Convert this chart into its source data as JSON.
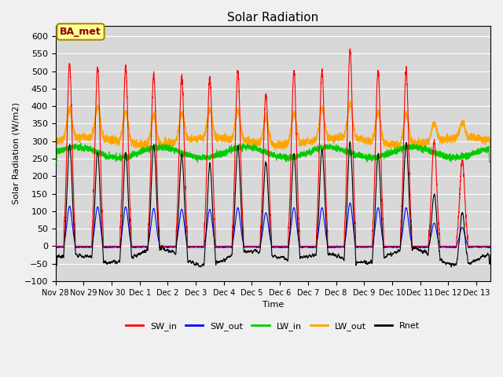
{
  "title": "Solar Radiation",
  "ylabel": "Solar Radiation (W/m2)",
  "xlabel": "Time",
  "ylim": [
    -100,
    630
  ],
  "yticks": [
    -100,
    -50,
    0,
    50,
    100,
    150,
    200,
    250,
    300,
    350,
    400,
    450,
    500,
    550,
    600
  ],
  "num_days": 15.5,
  "colors": {
    "SW_in": "#ff0000",
    "SW_out": "#0000ff",
    "LW_in": "#00cc00",
    "LW_out": "#ffa500",
    "Rnet": "#000000"
  },
  "plot_bg_color": "#d8d8d8",
  "fig_bg_color": "#f0f0f0",
  "annotation_text": "BA_met",
  "annotation_bg": "#ffff99",
  "annotation_border": "#aa8800",
  "grid_color": "#ffffff",
  "linewidth": 0.8,
  "tick_labels": [
    "Nov 28",
    "Nov 29",
    "Nov 30",
    "Dec 1",
    "Dec 2",
    "Dec 3",
    "Dec 4",
    "Dec 5",
    "Dec 6",
    "Dec 7",
    "Dec 8",
    "Dec 9",
    "Dec 10",
    "Dec 11",
    "Dec 12",
    "Dec 13"
  ],
  "sw_peaks": [
    520,
    510,
    510,
    490,
    480,
    480,
    500,
    435,
    500,
    500,
    560,
    500,
    500,
    300,
    245,
    0
  ]
}
